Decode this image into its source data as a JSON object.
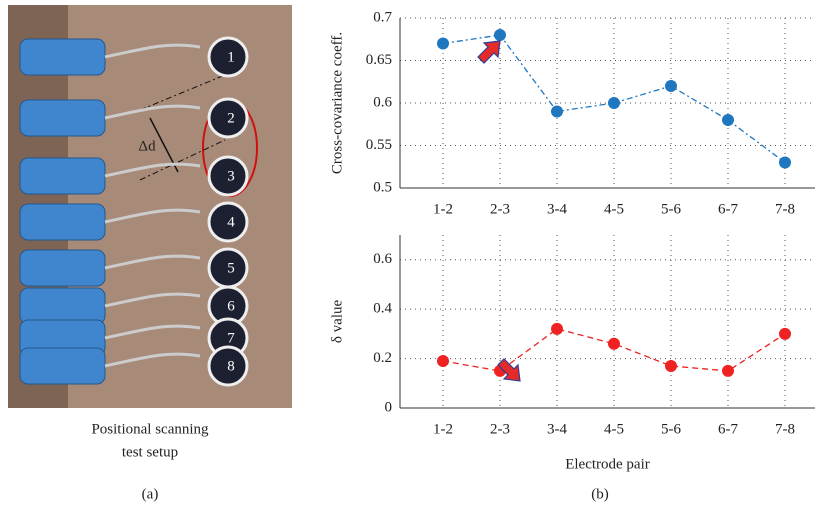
{
  "photo": {
    "caption": [
      "Positional scanning",
      "test setup"
    ],
    "electrodes": [
      "1",
      "2",
      "3",
      "4",
      "5",
      "6",
      "7",
      "8"
    ],
    "delta_label": "Δd"
  },
  "panel_labels": [
    "(a)",
    "(b)"
  ],
  "chart_data": [
    {
      "type": "line",
      "ylabel": "Cross-covariance coeff.",
      "categories": [
        "1-2",
        "2-3",
        "3-4",
        "4-5",
        "5-6",
        "6-7",
        "7-8"
      ],
      "values": [
        0.67,
        0.68,
        0.59,
        0.6,
        0.62,
        0.58,
        0.53
      ],
      "color": "#1f77c0",
      "line_style": "dashdot",
      "ylim": [
        0.5,
        0.7
      ],
      "yticks": [
        0.5,
        0.55,
        0.6,
        0.65,
        0.7
      ],
      "grid": true
    },
    {
      "type": "line",
      "ylabel": "δ value",
      "xlabel": "Electrode pair",
      "categories": [
        "1-2",
        "2-3",
        "3-4",
        "4-5",
        "5-6",
        "6-7",
        "7-8"
      ],
      "values": [
        0.19,
        0.15,
        0.32,
        0.26,
        0.17,
        0.15,
        0.3
      ],
      "color": "#ee2222",
      "line_style": "dashed",
      "ylim": [
        0,
        0.7
      ],
      "yticks": [
        0,
        0.2,
        0.4,
        0.6
      ],
      "grid": true
    }
  ]
}
